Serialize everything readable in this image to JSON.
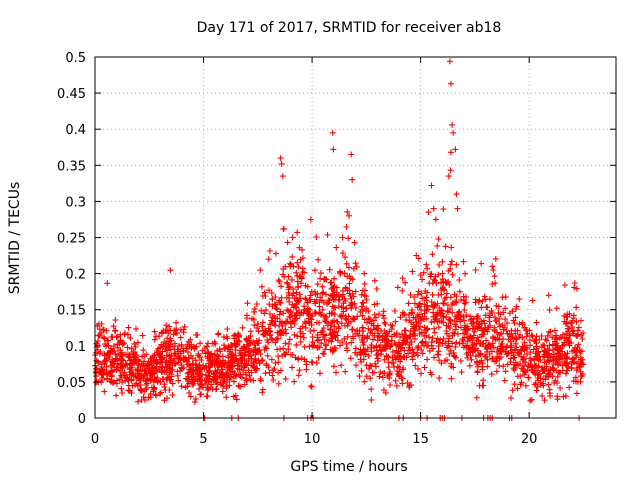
{
  "chart_data": {
    "type": "scatter",
    "title": "Day 171 of 2017, SRMTID for receiver ab18",
    "xlabel": "GPS time / hours",
    "ylabel": "SRMTID / TECUs",
    "xlim": [
      0,
      24
    ],
    "ylim": [
      0,
      0.5
    ],
    "xticks": [
      0,
      5,
      10,
      15,
      20
    ],
    "xtick_labels": [
      "0",
      "5",
      "10",
      "15",
      "20"
    ],
    "yticks": [
      0,
      0.05,
      0.1,
      0.15,
      0.2,
      0.25,
      0.3,
      0.35,
      0.4,
      0.45,
      0.5
    ],
    "ytick_labels": [
      "0",
      "0.05",
      "0.1",
      "0.15",
      "0.2",
      "0.25",
      "0.3",
      "0.35",
      "0.4",
      "0.45",
      "0.5"
    ],
    "grid": true,
    "marker": "+",
    "color": "#ff0000",
    "series": [
      {
        "name": "SRMTID",
        "trend_x": [
          0,
          0.5,
          1,
          1.5,
          2,
          2.5,
          3,
          3.5,
          4,
          4.5,
          5,
          5.5,
          6,
          6.5,
          7,
          7.5,
          8,
          8.5,
          9,
          9.5,
          10,
          10.5,
          11,
          11.5,
          12,
          12.5,
          13,
          13.5,
          14,
          14.5,
          15,
          15.5,
          16,
          16.5,
          17,
          17.5,
          18,
          18.5,
          19,
          19.5,
          20,
          20.5,
          21,
          21.5,
          22,
          22.5
        ],
        "trend_y": [
          0.08,
          0.085,
          0.08,
          0.075,
          0.065,
          0.065,
          0.075,
          0.085,
          0.08,
          0.07,
          0.06,
          0.065,
          0.065,
          0.08,
          0.09,
          0.1,
          0.11,
          0.13,
          0.15,
          0.15,
          0.13,
          0.14,
          0.14,
          0.15,
          0.13,
          0.11,
          0.1,
          0.09,
          0.09,
          0.11,
          0.13,
          0.15,
          0.15,
          0.14,
          0.12,
          0.1,
          0.11,
          0.12,
          0.1,
          0.085,
          0.08,
          0.075,
          0.08,
          0.09,
          0.095,
          0.08
        ],
        "peaks": [
          {
            "x": 8.55,
            "y": 0.36
          },
          {
            "x": 8.65,
            "y": 0.335
          },
          {
            "x": 8.6,
            "y": 0.352
          },
          {
            "x": 8.7,
            "y": 0.262
          },
          {
            "x": 9.1,
            "y": 0.25
          },
          {
            "x": 10.95,
            "y": 0.395
          },
          {
            "x": 10.98,
            "y": 0.372
          },
          {
            "x": 11.8,
            "y": 0.365
          },
          {
            "x": 11.85,
            "y": 0.33
          },
          {
            "x": 11.7,
            "y": 0.28
          },
          {
            "x": 11.4,
            "y": 0.25
          },
          {
            "x": 15.5,
            "y": 0.322
          },
          {
            "x": 15.6,
            "y": 0.29
          },
          {
            "x": 15.7,
            "y": 0.275
          },
          {
            "x": 16.35,
            "y": 0.494
          },
          {
            "x": 16.4,
            "y": 0.463
          },
          {
            "x": 16.45,
            "y": 0.406
          },
          {
            "x": 16.5,
            "y": 0.395
          },
          {
            "x": 16.6,
            "y": 0.372
          },
          {
            "x": 16.4,
            "y": 0.368
          },
          {
            "x": 16.65,
            "y": 0.31
          },
          {
            "x": 16.3,
            "y": 0.335
          },
          {
            "x": 16.7,
            "y": 0.29
          },
          {
            "x": 14.8,
            "y": 0.225
          },
          {
            "x": 18.3,
            "y": 0.21
          },
          {
            "x": 18.35,
            "y": 0.205
          },
          {
            "x": 22.1,
            "y": 0.187
          },
          {
            "x": 20.9,
            "y": 0.17
          },
          {
            "x": 8.0,
            "y": 0.22
          },
          {
            "x": 12.4,
            "y": 0.2
          }
        ],
        "zeros": [
          5.0,
          5.05,
          6.3,
          6.6,
          8.7,
          9.8,
          9.95,
          10.05,
          14.0,
          14.2,
          15.0,
          15.3,
          15.9,
          16.0,
          16.1,
          16.9,
          17.9,
          18.1,
          18.2,
          18.3,
          19.1,
          19.2,
          22.3
        ]
      }
    ]
  }
}
